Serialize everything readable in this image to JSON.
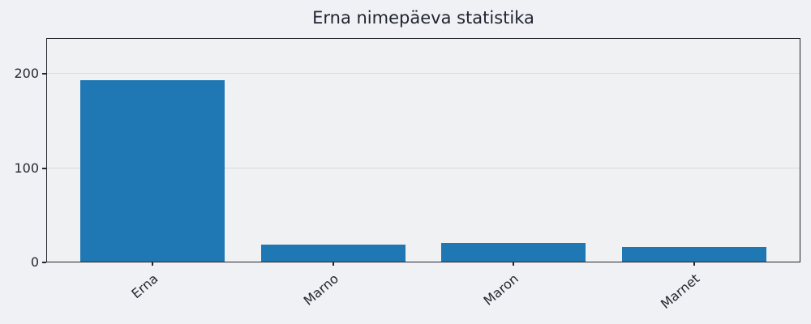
{
  "chart_data": {
    "type": "bar",
    "title": "Erna nimepäeva statistika",
    "categories": [
      "Erna",
      "Marno",
      "Maron",
      "Marnet"
    ],
    "values": [
      193,
      19,
      21,
      16
    ],
    "xlabel": "",
    "ylabel": "",
    "yticks": [
      0,
      100,
      200
    ],
    "ylim": [
      0,
      238
    ],
    "xtick_rotation_deg": 40,
    "grid": "horizontal-only",
    "legend": "none",
    "colors": {
      "bar": "#1f77b4",
      "figure_background": "#f0f1f4",
      "plot_background": "#f0f1f2",
      "axis_frame": "#24262e",
      "gridline": "#d9dadc",
      "text": "#1f2430"
    }
  }
}
